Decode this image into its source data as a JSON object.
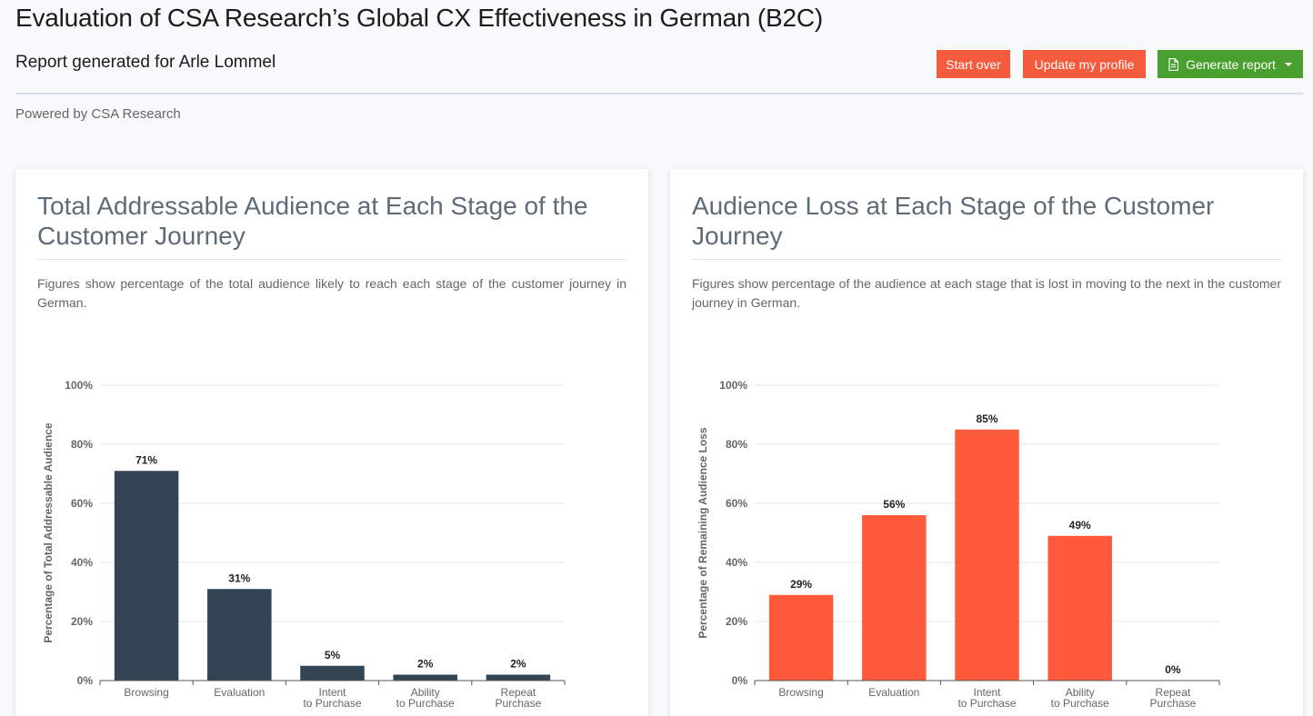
{
  "header": {
    "title": "Evaluation of CSA Research’s Global CX Effectiveness in German (B2C)",
    "report_for": "Report generated for Arle Lommel",
    "powered_by": "Powered by CSA Research"
  },
  "buttons": {
    "start_over": "Start over",
    "update_profile": "Update my profile",
    "generate_report": "Generate report"
  },
  "colors": {
    "accent_red": "#f55a3d",
    "accent_green": "#4aa02e",
    "bar_dark": "#334455",
    "bar_orange": "#ff5a3c"
  },
  "cards": {
    "left": {
      "title": "Total Addressable Audience at Each Stage of the Customer Journey",
      "description": "Figures show percentage of the total audience likely to reach each stage of the customer journey in German."
    },
    "right": {
      "title": "Audience Loss at Each Stage of the Customer Journey",
      "description": "Figures show percentage of the audience at each stage that is lost in moving to the next in the customer journey in German."
    }
  },
  "chart_data": [
    {
      "type": "bar",
      "categories": [
        "Browsing",
        "Evaluation",
        "Intent to Purchase",
        "Ability to Purchase",
        "Repeat Purchase"
      ],
      "category_lines": [
        [
          "Browsing"
        ],
        [
          "Evaluation"
        ],
        [
          "Intent",
          "to Purchase"
        ],
        [
          "Ability",
          "to Purchase"
        ],
        [
          "Repeat",
          "Purchase"
        ]
      ],
      "values": [
        71,
        31,
        5,
        2,
        2
      ],
      "data_labels": [
        "71%",
        "31%",
        "5%",
        "2%",
        "2%"
      ],
      "ylabel": "Percentage of Total Addressable Audience",
      "ylim": [
        0,
        100
      ],
      "yticks": [
        "0%",
        "20%",
        "40%",
        "60%",
        "80%",
        "100%"
      ],
      "grid": true,
      "color": "#334455"
    },
    {
      "type": "bar",
      "categories": [
        "Browsing",
        "Evaluation",
        "Intent to Purchase",
        "Ability to Purchase",
        "Repeat Purchase"
      ],
      "category_lines": [
        [
          "Browsing"
        ],
        [
          "Evaluation"
        ],
        [
          "Intent",
          "to Purchase"
        ],
        [
          "Ability",
          "to Purchase"
        ],
        [
          "Repeat",
          "Purchase"
        ]
      ],
      "values": [
        29,
        56,
        85,
        49,
        0
      ],
      "data_labels": [
        "29%",
        "56%",
        "85%",
        "49%",
        "0%"
      ],
      "ylabel": "Percentage of Remaining Audience Loss",
      "ylim": [
        0,
        100
      ],
      "yticks": [
        "0%",
        "20%",
        "40%",
        "60%",
        "80%",
        "100%"
      ],
      "grid": true,
      "color": "#ff5a3c"
    }
  ]
}
